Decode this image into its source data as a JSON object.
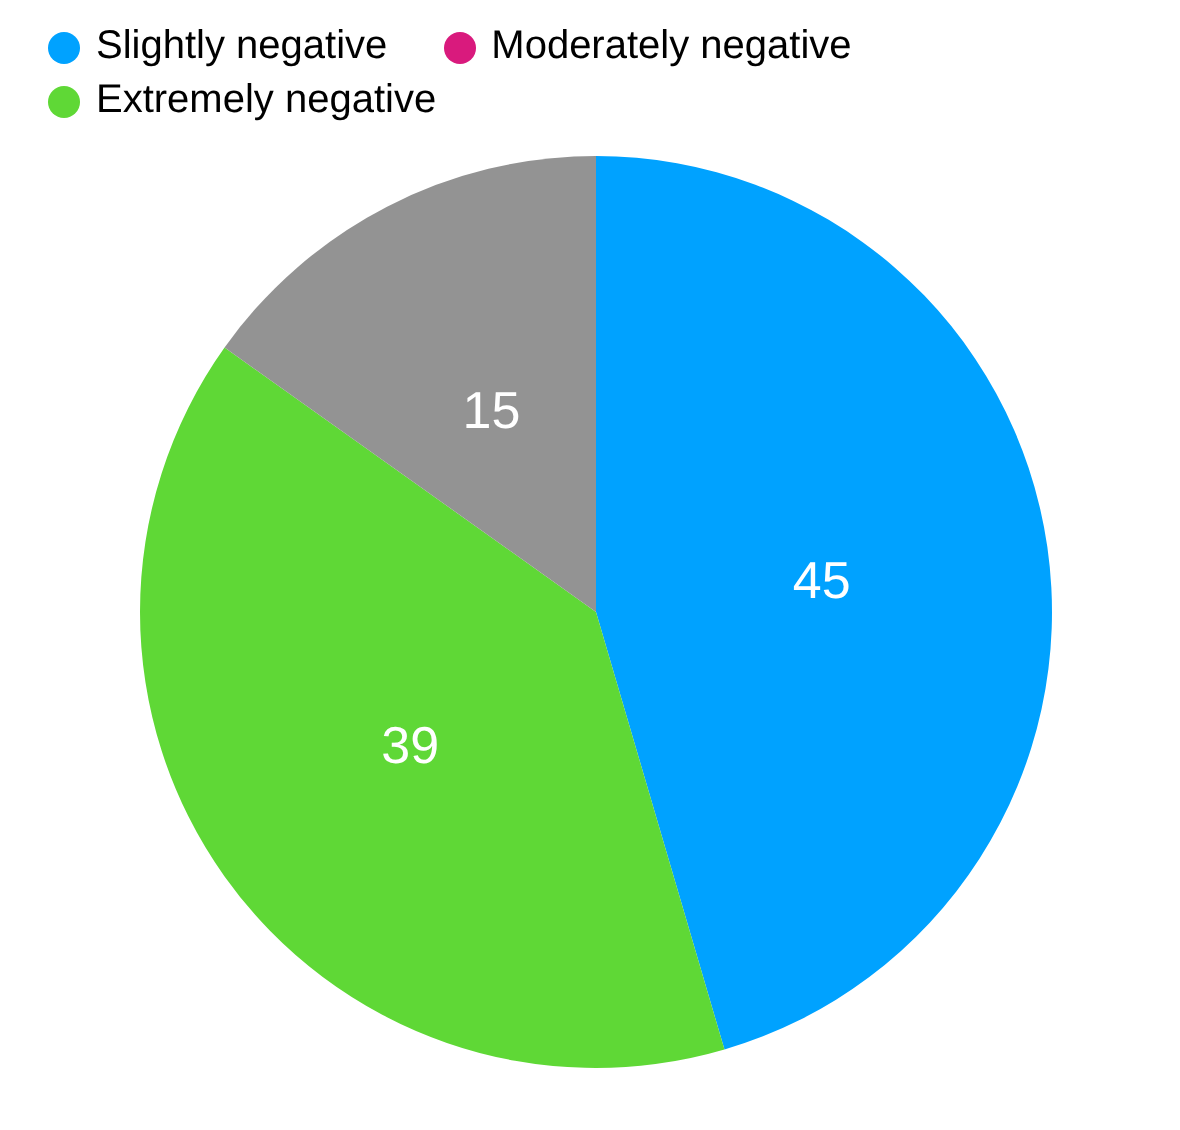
{
  "chart_data": {
    "type": "pie",
    "categories": [
      "Slightly negative",
      "Moderately negative",
      "Extremely negative",
      null
    ],
    "values": [
      45,
      0,
      39,
      15
    ],
    "colors": [
      "#00a2ff",
      "#d91a7d",
      "#5fd836",
      "#939393"
    ],
    "data_labels": true,
    "legend": "top"
  }
}
